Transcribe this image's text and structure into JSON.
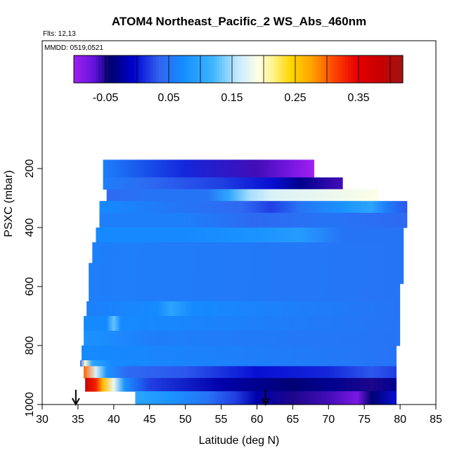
{
  "chart_data": {
    "type": "heatmap",
    "title": "ATOM4 Northeast_Pacific_2 WS_Abs_460nm",
    "subtitle_flts": "Flts: 12,13",
    "subtitle_mmdd": "MMDD: 0519,0521",
    "xlabel": "Latitude (deg N)",
    "ylabel": "PSXC (mbar)",
    "xlim": [
      30,
      85
    ],
    "ylim": [
      1000,
      0
    ],
    "x_ticks": [
      "30",
      "35",
      "40",
      "45",
      "50",
      "55",
      "60",
      "65",
      "70",
      "75",
      "80",
      "85"
    ],
    "y_ticks": [
      "200",
      "400",
      "600",
      "800",
      "1000"
    ],
    "y_tick_values": [
      200,
      400,
      600,
      800,
      1000
    ],
    "colorbar": {
      "range": [
        -0.1,
        0.42
      ],
      "tick_labels": [
        "-0.05",
        "0.05",
        "0.15",
        "0.25",
        "0.35"
      ],
      "tick_values": [
        -0.05,
        0.05,
        0.15,
        0.25,
        0.35
      ]
    },
    "markers": [
      {
        "name": "arrow-1",
        "latitude": 34.7,
        "pressure": 995
      },
      {
        "name": "arrow-2",
        "latitude": 61.2,
        "pressure": 995
      }
    ],
    "rows": [
      {
        "p_top": 170,
        "p_bot": 230,
        "segments": [
          [
            38.5,
            68,
            [
              [
                38.5,
                0.06
              ],
              [
                50,
                0.01
              ],
              [
                60,
                -0.06
              ],
              [
                65,
                -0.08
              ],
              [
                68,
                -0.1
              ]
            ]
          ]
        ]
      },
      {
        "p_top": 230,
        "p_bot": 270,
        "segments": [
          [
            38.5,
            72,
            [
              [
                38.5,
                0.06
              ],
              [
                45,
                0.04
              ],
              [
                55,
                0.02
              ],
              [
                62,
                0.0
              ],
              [
                66,
                -0.03
              ],
              [
                72,
                -0.06
              ]
            ]
          ]
        ]
      },
      {
        "p_top": 270,
        "p_bot": 310,
        "segments": [
          [
            39,
            77,
            [
              [
                39,
                0.04
              ],
              [
                45,
                0.05
              ],
              [
                53,
                0.05
              ],
              [
                56,
                0.1
              ],
              [
                59,
                0.15
              ],
              [
                62,
                0.17
              ],
              [
                70,
                0.18
              ],
              [
                77,
                0.19
              ]
            ]
          ]
        ]
      },
      {
        "p_top": 310,
        "p_bot": 350,
        "segments": [
          [
            38,
            81,
            [
              [
                38,
                0.07
              ],
              [
                50,
                0.05
              ],
              [
                58,
                0.04
              ],
              [
                62,
                0.02
              ],
              [
                66,
                0.05
              ],
              [
                72,
                0.08
              ],
              [
                76,
                0.1
              ],
              [
                78,
                0.06
              ],
              [
                81,
                0.03
              ]
            ]
          ]
        ]
      },
      {
        "p_top": 350,
        "p_bot": 400,
        "segments": [
          [
            38,
            81,
            [
              [
                38,
                0.06
              ],
              [
                50,
                0.06
              ],
              [
                60,
                0.04
              ],
              [
                70,
                0.05
              ],
              [
                81,
                0.04
              ]
            ]
          ]
        ]
      },
      {
        "p_top": 400,
        "p_bot": 450,
        "segments": [
          [
            37.5,
            80.5,
            [
              [
                37.5,
                0.07
              ],
              [
                50,
                0.07
              ],
              [
                60,
                0.08
              ],
              [
                66,
                0.09
              ],
              [
                72,
                0.05
              ],
              [
                80.5,
                0.05
              ]
            ]
          ]
        ]
      },
      {
        "p_top": 450,
        "p_bot": 520,
        "segments": [
          [
            37,
            80.5,
            [
              [
                37,
                0.06
              ],
              [
                80.5,
                0.05
              ]
            ]
          ]
        ]
      },
      {
        "p_top": 520,
        "p_bot": 590,
        "segments": [
          [
            36.5,
            80.5,
            [
              [
                36.5,
                0.06
              ],
              [
                80.5,
                0.05
              ]
            ]
          ]
        ]
      },
      {
        "p_top": 590,
        "p_bot": 650,
        "segments": [
          [
            36.5,
            80,
            [
              [
                36.5,
                0.06
              ],
              [
                80,
                0.05
              ]
            ]
          ]
        ]
      },
      {
        "p_top": 650,
        "p_bot": 700,
        "segments": [
          [
            36.2,
            80,
            [
              [
                36.2,
                0.06
              ],
              [
                46,
                0.07
              ],
              [
                48,
                0.1
              ],
              [
                51,
                0.07
              ],
              [
                80,
                0.05
              ]
            ]
          ]
        ]
      },
      {
        "p_top": 700,
        "p_bot": 750,
        "segments": [
          [
            35.8,
            80,
            [
              [
                35.8,
                0.07
              ],
              [
                39,
                0.07
              ],
              [
                40,
                0.13
              ],
              [
                41,
                0.07
              ],
              [
                80,
                0.05
              ]
            ]
          ]
        ]
      },
      {
        "p_top": 750,
        "p_bot": 800,
        "segments": [
          [
            35.8,
            80,
            [
              [
                35.8,
                0.08
              ],
              [
                45,
                0.06
              ],
              [
                80,
                0.05
              ]
            ]
          ]
        ]
      },
      {
        "p_top": 800,
        "p_bot": 850,
        "segments": [
          [
            35.5,
            79.5,
            [
              [
                35.5,
                0.07
              ],
              [
                79.5,
                0.05
              ]
            ]
          ]
        ]
      },
      {
        "p_top": 850,
        "p_bot": 870,
        "segments": [
          [
            35.3,
            79.5,
            [
              [
                35.3,
                0.04
              ],
              [
                36,
                0.2
              ],
              [
                37,
                0.1
              ],
              [
                40,
                0.07
              ],
              [
                79.5,
                0.05
              ]
            ]
          ]
        ]
      },
      {
        "p_top": 870,
        "p_bot": 910,
        "segments": [
          [
            35.8,
            79.5,
            [
              [
                35.8,
                0.3
              ],
              [
                37.5,
                0.17
              ],
              [
                39,
                0.08
              ],
              [
                42,
                0.04
              ],
              [
                50,
                0.03
              ],
              [
                60,
                0.0
              ],
              [
                70,
                0.01
              ],
              [
                76,
                0.03
              ],
              [
                79.5,
                0.02
              ]
            ]
          ]
        ]
      },
      {
        "p_top": 910,
        "p_bot": 955,
        "segments": [
          [
            36.0,
            79.5,
            [
              [
                36.0,
                0.38
              ],
              [
                37.5,
                0.33
              ],
              [
                38.5,
                0.26
              ],
              [
                40,
                0.18
              ],
              [
                41.5,
                0.08
              ],
              [
                45,
                0.02
              ],
              [
                55,
                -0.02
              ],
              [
                65,
                -0.04
              ],
              [
                70,
                -0.03
              ],
              [
                76,
                -0.05
              ],
              [
                79.5,
                -0.03
              ]
            ]
          ]
        ]
      },
      {
        "p_top": 955,
        "p_bot": 1000,
        "segments": [
          [
            43,
            79.5,
            [
              [
                43,
                0.1
              ],
              [
                48,
                0.08
              ],
              [
                53,
                0.05
              ],
              [
                57,
                0.02
              ],
              [
                60,
                -0.02
              ],
              [
                65,
                -0.05
              ],
              [
                70,
                -0.06
              ],
              [
                74,
                -0.08
              ],
              [
                76,
                -0.04
              ],
              [
                79.5,
                0.0
              ]
            ]
          ]
        ]
      }
    ]
  }
}
